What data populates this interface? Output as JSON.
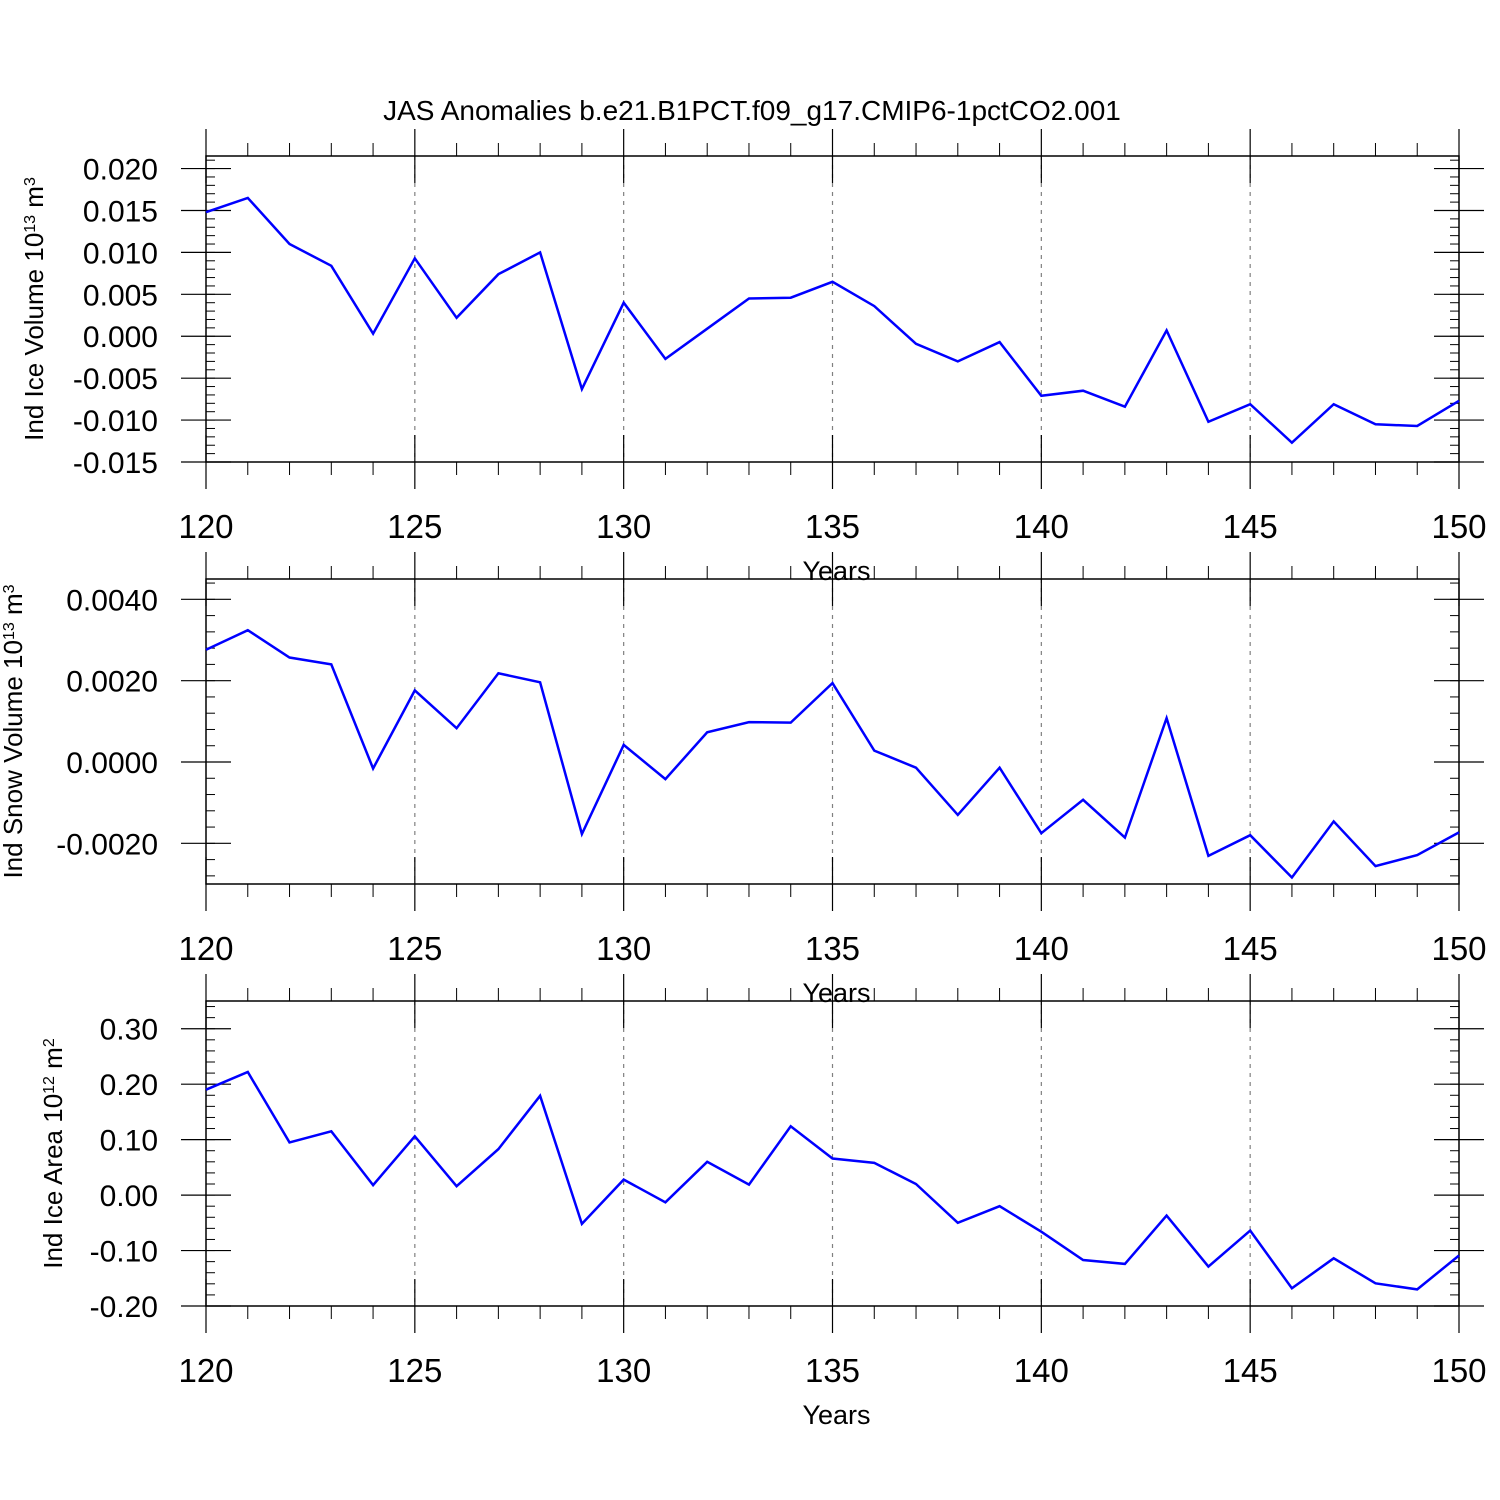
{
  "figure": {
    "title": "JAS Anomalies b.e21.B1PCT.f09_g17.CMIP6-1pctCO2.001"
  },
  "style": {
    "line_color": "#0000ff",
    "axis_color": "#000000",
    "grid_color": "#808080"
  },
  "chart_data": [
    {
      "type": "line",
      "ylabel": {
        "main": "Ind Ice Volume 10",
        "exp": "13",
        "unit": " m",
        "unit_exp": "3"
      },
      "xlabel": "Years",
      "xlim": [
        120,
        150
      ],
      "ylim": [
        -0.015,
        0.0215
      ],
      "yticks": [
        0.02,
        0.015,
        0.01,
        0.005,
        0.0,
        -0.005,
        -0.01,
        -0.015
      ],
      "ytick_labels": [
        "0.020",
        "0.015",
        "0.010",
        "0.005",
        "0.000",
        "-0.005",
        "-0.010",
        "-0.015"
      ],
      "yminor_step": 0.001,
      "xticks": [
        120,
        125,
        130,
        135,
        140,
        145,
        150
      ],
      "xtick_labels": [
        "120",
        "125",
        "130",
        "135",
        "140",
        "145",
        "150"
      ],
      "grid": "dashed vertical at major x ticks",
      "x": [
        120,
        121,
        122,
        123,
        124,
        125,
        126,
        127,
        128,
        129,
        130,
        131,
        132,
        133,
        134,
        135,
        136,
        137,
        138,
        139,
        140,
        141,
        142,
        143,
        144,
        145,
        146,
        147,
        148,
        149,
        150
      ],
      "values": [
        0.0148,
        0.0165,
        0.011,
        0.0084,
        0.0003,
        0.0093,
        0.0022,
        0.0074,
        0.01,
        -0.0063,
        0.004,
        -0.0027,
        0.0009,
        0.0045,
        0.0046,
        0.0065,
        0.0036,
        -0.0009,
        -0.003,
        -0.0007,
        -0.0071,
        -0.0065,
        -0.0084,
        0.0007,
        -0.0102,
        -0.0081,
        -0.0127,
        -0.0081,
        -0.0105,
        -0.0107,
        -0.0077
      ]
    },
    {
      "type": "line",
      "ylabel": {
        "main": "Ind Snow Volume 10",
        "exp": "13",
        "unit": " m",
        "unit_exp": "3"
      },
      "xlabel": "Years",
      "xlim": [
        120,
        150
      ],
      "ylim": [
        -0.003,
        0.0045
      ],
      "yticks": [
        0.004,
        0.002,
        0.0,
        -0.002
      ],
      "ytick_labels": [
        "0.0040",
        "0.0020",
        "0.0000",
        "-0.0020"
      ],
      "yminor_step": 0.0004,
      "xticks": [
        120,
        125,
        130,
        135,
        140,
        145,
        150
      ],
      "xtick_labels": [
        "120",
        "125",
        "130",
        "135",
        "140",
        "145",
        "150"
      ],
      "grid": "dashed vertical at major x ticks",
      "x": [
        120,
        121,
        122,
        123,
        124,
        125,
        126,
        127,
        128,
        129,
        130,
        131,
        132,
        133,
        134,
        135,
        136,
        137,
        138,
        139,
        140,
        141,
        142,
        143,
        144,
        145,
        146,
        147,
        148,
        149,
        150
      ],
      "values": [
        0.00276,
        0.00324,
        0.00257,
        0.0024,
        -0.00016,
        0.00176,
        0.00083,
        0.00218,
        0.00196,
        -0.00177,
        0.00042,
        -0.00042,
        0.00073,
        0.00098,
        0.00097,
        0.00194,
        0.00028,
        -0.00014,
        -0.0013,
        -0.00014,
        -0.00175,
        -0.00093,
        -0.00186,
        0.00108,
        -0.00231,
        -0.0018,
        -0.00284,
        -0.00146,
        -0.00256,
        -0.00229,
        -0.00173
      ]
    },
    {
      "type": "line",
      "ylabel": {
        "main": "Ind Ice Area 10",
        "exp": "12",
        "unit": " m",
        "unit_exp": "2"
      },
      "xlabel": "Years",
      "xlim": [
        120,
        150
      ],
      "ylim": [
        -0.2,
        0.35
      ],
      "yticks": [
        0.3,
        0.2,
        0.1,
        0.0,
        -0.1,
        -0.2
      ],
      "ytick_labels": [
        "0.30",
        "0.20",
        "0.10",
        "0.00",
        "-0.10",
        "-0.20"
      ],
      "yminor_step": 0.02,
      "xticks": [
        120,
        125,
        130,
        135,
        140,
        145,
        150
      ],
      "xtick_labels": [
        "120",
        "125",
        "130",
        "135",
        "140",
        "145",
        "150"
      ],
      "grid": "dashed vertical at major x ticks",
      "x": [
        120,
        121,
        122,
        123,
        124,
        125,
        126,
        127,
        128,
        129,
        130,
        131,
        132,
        133,
        134,
        135,
        136,
        137,
        138,
        139,
        140,
        141,
        142,
        143,
        144,
        145,
        146,
        147,
        148,
        149,
        150
      ],
      "values": [
        0.19,
        0.222,
        0.095,
        0.115,
        0.018,
        0.106,
        0.016,
        0.083,
        0.179,
        -0.052,
        0.028,
        -0.013,
        0.06,
        0.019,
        0.124,
        0.066,
        0.058,
        0.02,
        -0.05,
        -0.02,
        -0.066,
        -0.117,
        -0.124,
        -0.037,
        -0.129,
        -0.064,
        -0.168,
        -0.114,
        -0.159,
        -0.17,
        -0.109
      ]
    }
  ]
}
